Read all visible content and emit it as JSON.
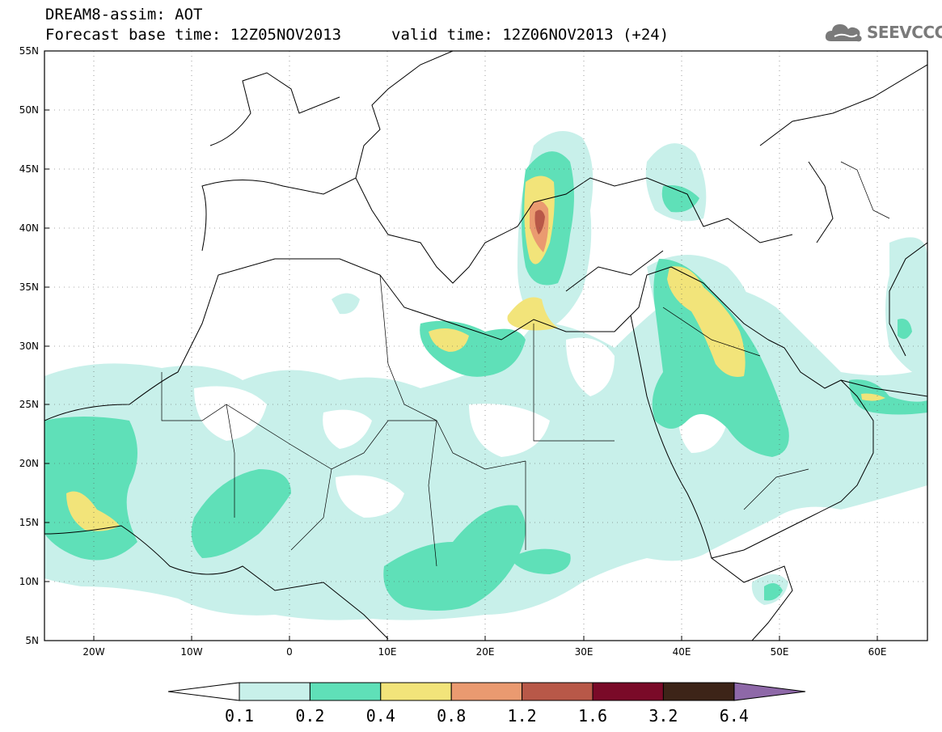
{
  "header": {
    "title_line1": "DREAM8-assim: AOT",
    "title_line2": "Forecast base time: 12Z05NOV2013",
    "valid_time": "valid time: 12Z06NOV2013 (+24)",
    "logo_text": "SEEVCCC",
    "logo_icon": "cloud-icon"
  },
  "map": {
    "lon_range": [
      -25,
      65
    ],
    "lat_range": [
      5,
      55
    ],
    "lat_labels": [
      "55N",
      "50N",
      "45N",
      "40N",
      "35N",
      "30N",
      "25N",
      "20N",
      "15N",
      "10N",
      "5N"
    ],
    "lon_labels": [
      "20W",
      "10W",
      "0",
      "10E",
      "20E",
      "30E",
      "40E",
      "50E",
      "60E"
    ]
  },
  "colorbar": {
    "ticks": [
      "0.1",
      "0.2",
      "0.4",
      "0.8",
      "1.2",
      "1.6",
      "3.2",
      "6.4"
    ],
    "colors": [
      "#c8f0ea",
      "#5fe0b8",
      "#f2e47a",
      "#ea9a70",
      "#b85848",
      "#7a0a28",
      "#3d2418"
    ],
    "above_color": "#8e68a8",
    "below_color": "#ffffff"
  }
}
